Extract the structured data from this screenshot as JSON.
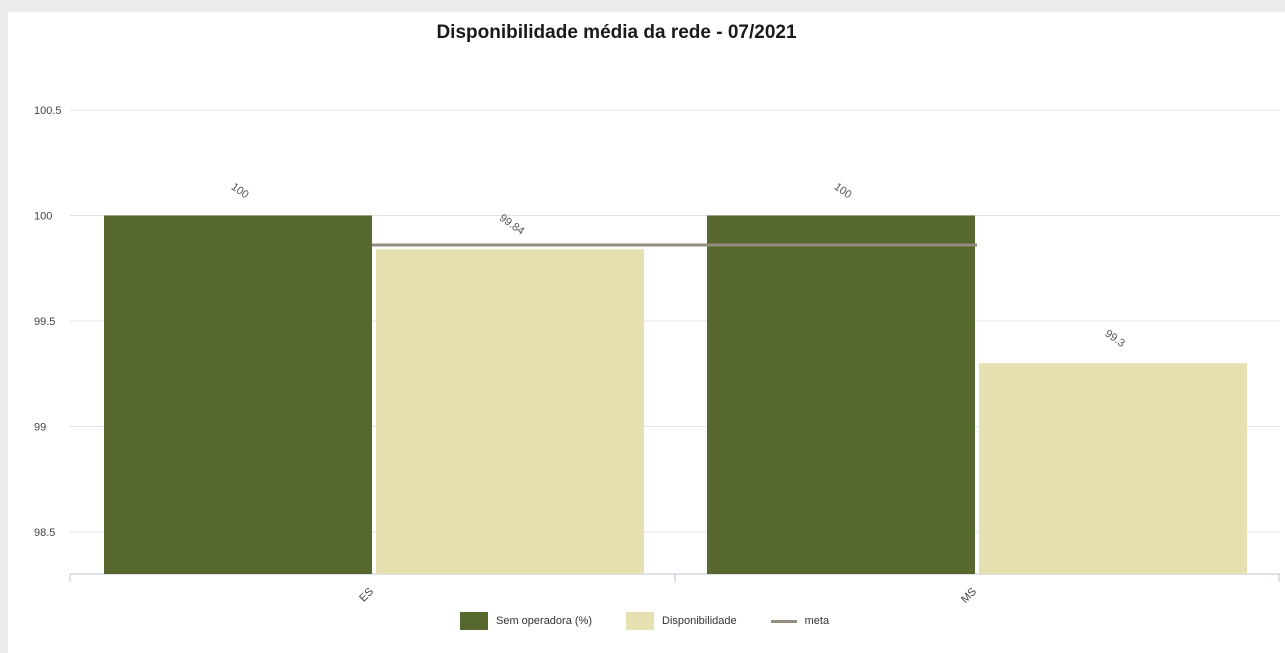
{
  "chart_data": {
    "type": "bar",
    "title": "Disponibilidade média da rede - 07/2021",
    "xlabel": "",
    "ylabel": "",
    "categories": [
      "ES",
      "MS"
    ],
    "series": [
      {
        "name": "Sem operadora (%)",
        "values": [
          100,
          100
        ],
        "color": "#56682e"
      },
      {
        "name": "Disponibilidade",
        "values": [
          99.84,
          99.3
        ],
        "color": "#e6e0b0"
      }
    ],
    "reference_line": {
      "name": "meta",
      "value": 99.86,
      "color": "#948c7f"
    },
    "yticks": [
      "98.5",
      "99",
      "99.5",
      "100",
      "100.5"
    ],
    "ylim": [
      98.3,
      100.5
    ],
    "grid": true,
    "legend_position": "bottom"
  }
}
